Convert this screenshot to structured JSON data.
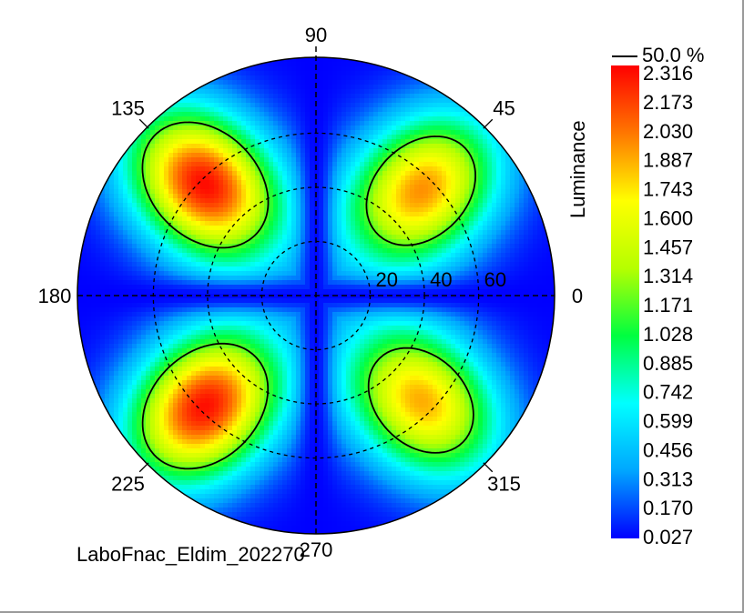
{
  "chart_data": {
    "type": "heatmap",
    "subtype": "polar-conoscopic",
    "colorbar": {
      "title": "Luminance",
      "ticks": [
        "2.316",
        "2.173",
        "2.030",
        "1.887",
        "1.743",
        "1.600",
        "1.457",
        "1.314",
        "1.171",
        "1.028",
        "0.885",
        "0.742",
        "0.599",
        "0.456",
        "0.313",
        "0.170",
        "0.027"
      ],
      "range": [
        0.027,
        2.316
      ],
      "colormap": [
        "#0000ff",
        "#00a6ff",
        "#00ffff",
        "#00ff40",
        "#b6ff00",
        "#ffff00",
        "#ff7700",
        "#ff0000"
      ]
    },
    "contour": {
      "label": "50.0 %",
      "level": 1.157
    },
    "azimuth_labels": [
      {
        "deg": 0,
        "text": "0"
      },
      {
        "deg": 45,
        "text": "45"
      },
      {
        "deg": 90,
        "text": "90"
      },
      {
        "deg": 135,
        "text": "135"
      },
      {
        "deg": 180,
        "text": "180"
      },
      {
        "deg": 225,
        "text": "225"
      },
      {
        "deg": 270,
        "text": "270"
      },
      {
        "deg": 315,
        "text": "315"
      }
    ],
    "radial_rings": [
      {
        "theta": 20,
        "text": "20"
      },
      {
        "theta": 40,
        "text": "40"
      },
      {
        "theta": 60,
        "text": "60"
      }
    ],
    "theta_max": 88,
    "lobes": [
      {
        "azimuth": 135,
        "theta": 58,
        "peak": 2.31
      },
      {
        "azimuth": 225,
        "theta": 58,
        "peak": 2.3
      },
      {
        "azimuth": 45,
        "theta": 55,
        "peak": 1.95
      },
      {
        "azimuth": 315,
        "theta": 55,
        "peak": 1.88
      }
    ],
    "minimum_lines_azimuth": [
      0,
      90
    ]
  },
  "footer": {
    "label": "LaboFnac_Eldim_202270"
  },
  "colors": {
    "contour": "#000000",
    "grid": "#000000",
    "text": "#000000"
  }
}
